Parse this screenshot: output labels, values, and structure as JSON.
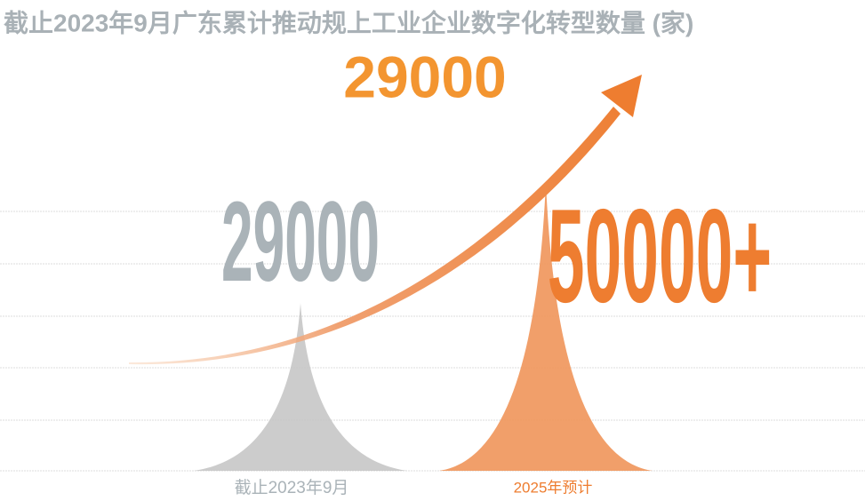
{
  "chart_data": {
    "type": "spike",
    "title": "截止2023年9月广东累计推动规上工业企业数字化转型数量 (家)",
    "annotation": "29000",
    "categories": [
      "截止2023年9月",
      "2025年预计"
    ],
    "values": [
      29000,
      50000
    ],
    "value_labels": [
      "29000",
      "50000+"
    ],
    "colors": [
      "#c6c6c6",
      "#f0955a"
    ],
    "label_colors": [
      "#aab3b8",
      "#ee7d30"
    ]
  }
}
